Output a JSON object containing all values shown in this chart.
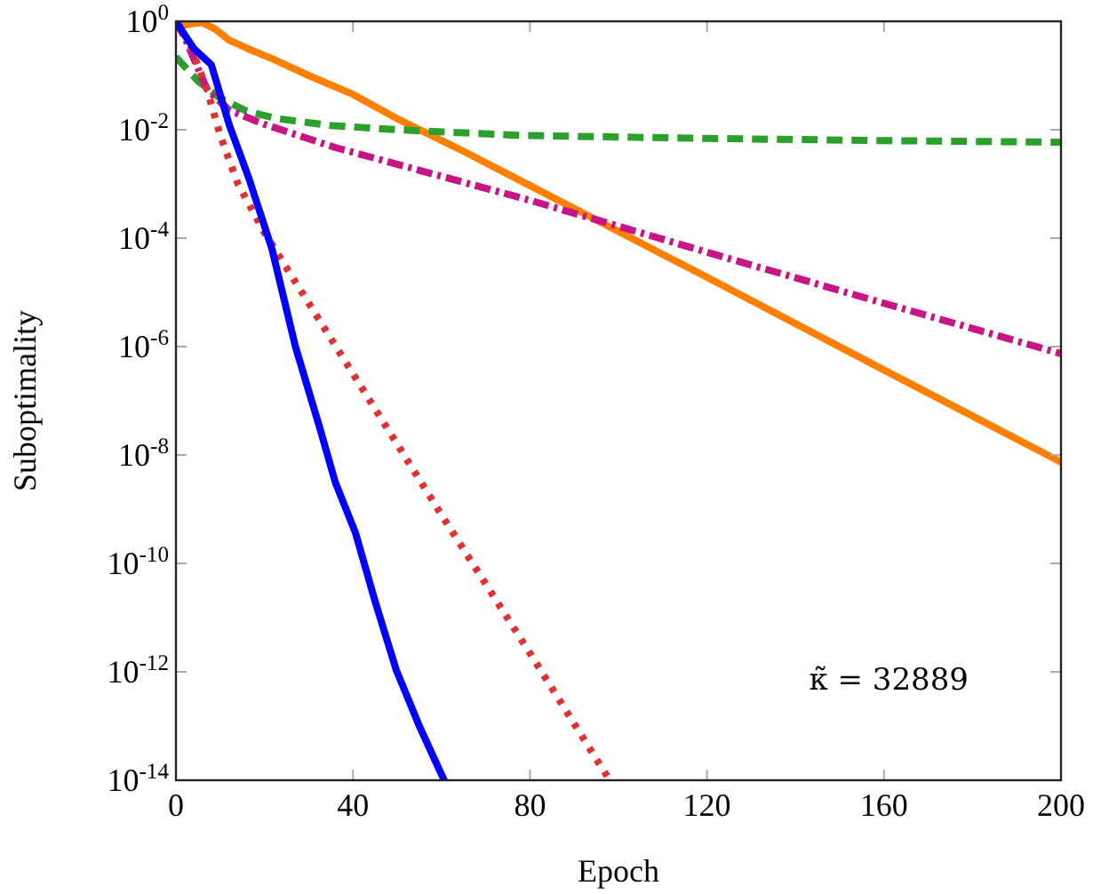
{
  "chart_data": {
    "type": "line",
    "xlabel": "Epoch",
    "ylabel": "Suboptimality",
    "log": "y",
    "grid": false,
    "xlim": [
      0,
      200
    ],
    "xticks": [
      0,
      40,
      80,
      120,
      160,
      200
    ],
    "ylim": [
      1e-14,
      1
    ],
    "yticks": [
      {
        "value": 1,
        "label": "10$^{0}$"
      },
      {
        "value": 0.01,
        "label": "10$^{-2}$"
      },
      {
        "value": 0.0001,
        "label": "10$^{-4}$"
      },
      {
        "value": 1e-06,
        "label": "10$^{-6}$"
      },
      {
        "value": 1e-08,
        "label": "10$^{-8}$"
      },
      {
        "value": 1e-10,
        "label": "10$^{-10}$"
      },
      {
        "value": 1e-12,
        "label": "10$^{-12}$"
      },
      {
        "value": 1e-14,
        "label": "10$^{-14}$"
      }
    ],
    "annotations": [
      "κ̃ = 32889"
    ],
    "series": [
      {
        "color": "#ff8000",
        "line_style": "solid",
        "x": [
          0,
          3,
          6,
          9,
          12,
          16,
          22,
          30,
          40,
          50,
          65,
          80,
          120,
          160,
          200
        ],
        "values": [
          0.79,
          0.89,
          0.95,
          0.71,
          0.45,
          0.32,
          0.2,
          0.1,
          0.045,
          0.016,
          0.004,
          0.00093,
          1.9e-05,
          3.7e-07,
          7.4e-09
        ]
      },
      {
        "color": "#2ca02c",
        "line_style": "dashed",
        "x": [
          0,
          5,
          10,
          16,
          23,
          35,
          50,
          77,
          120,
          160,
          200
        ],
        "values": [
          0.22,
          0.079,
          0.038,
          0.022,
          0.016,
          0.012,
          0.01,
          0.0079,
          0.0069,
          0.0063,
          0.0059
        ]
      },
      {
        "color": "#c71585",
        "line_style": "dashdot",
        "x": [
          0,
          2,
          7,
          12,
          20,
          36,
          80,
          120,
          160,
          200
        ],
        "values": [
          1,
          0.5,
          0.056,
          0.023,
          0.0126,
          0.0047,
          0.0005,
          5.5e-05,
          6.3e-06,
          7.4e-07
        ]
      },
      {
        "color": "#e03030",
        "line_style": "dotted",
        "x": [
          0,
          3,
          7,
          10,
          14,
          20,
          40,
          60,
          80,
          98
        ],
        "values": [
          1,
          0.4,
          0.056,
          0.0079,
          0.001,
          0.000126,
          3.16e-07,
          7.9e-10,
          2.2e-12,
          1e-14
        ]
      },
      {
        "color": "#0000ff",
        "line_style": "solid",
        "x": [
          0,
          4,
          8,
          12,
          16.5,
          21.7,
          27,
          32.5,
          36,
          40.6,
          45,
          49.8,
          55,
          60.6
        ],
        "values": [
          1,
          0.316,
          0.158,
          0.0126,
          0.00126,
          6.3e-05,
          1e-06,
          3.16e-08,
          3.16e-09,
          3.6e-10,
          2e-11,
          1.07e-12,
          1e-13,
          1e-14
        ]
      }
    ]
  }
}
